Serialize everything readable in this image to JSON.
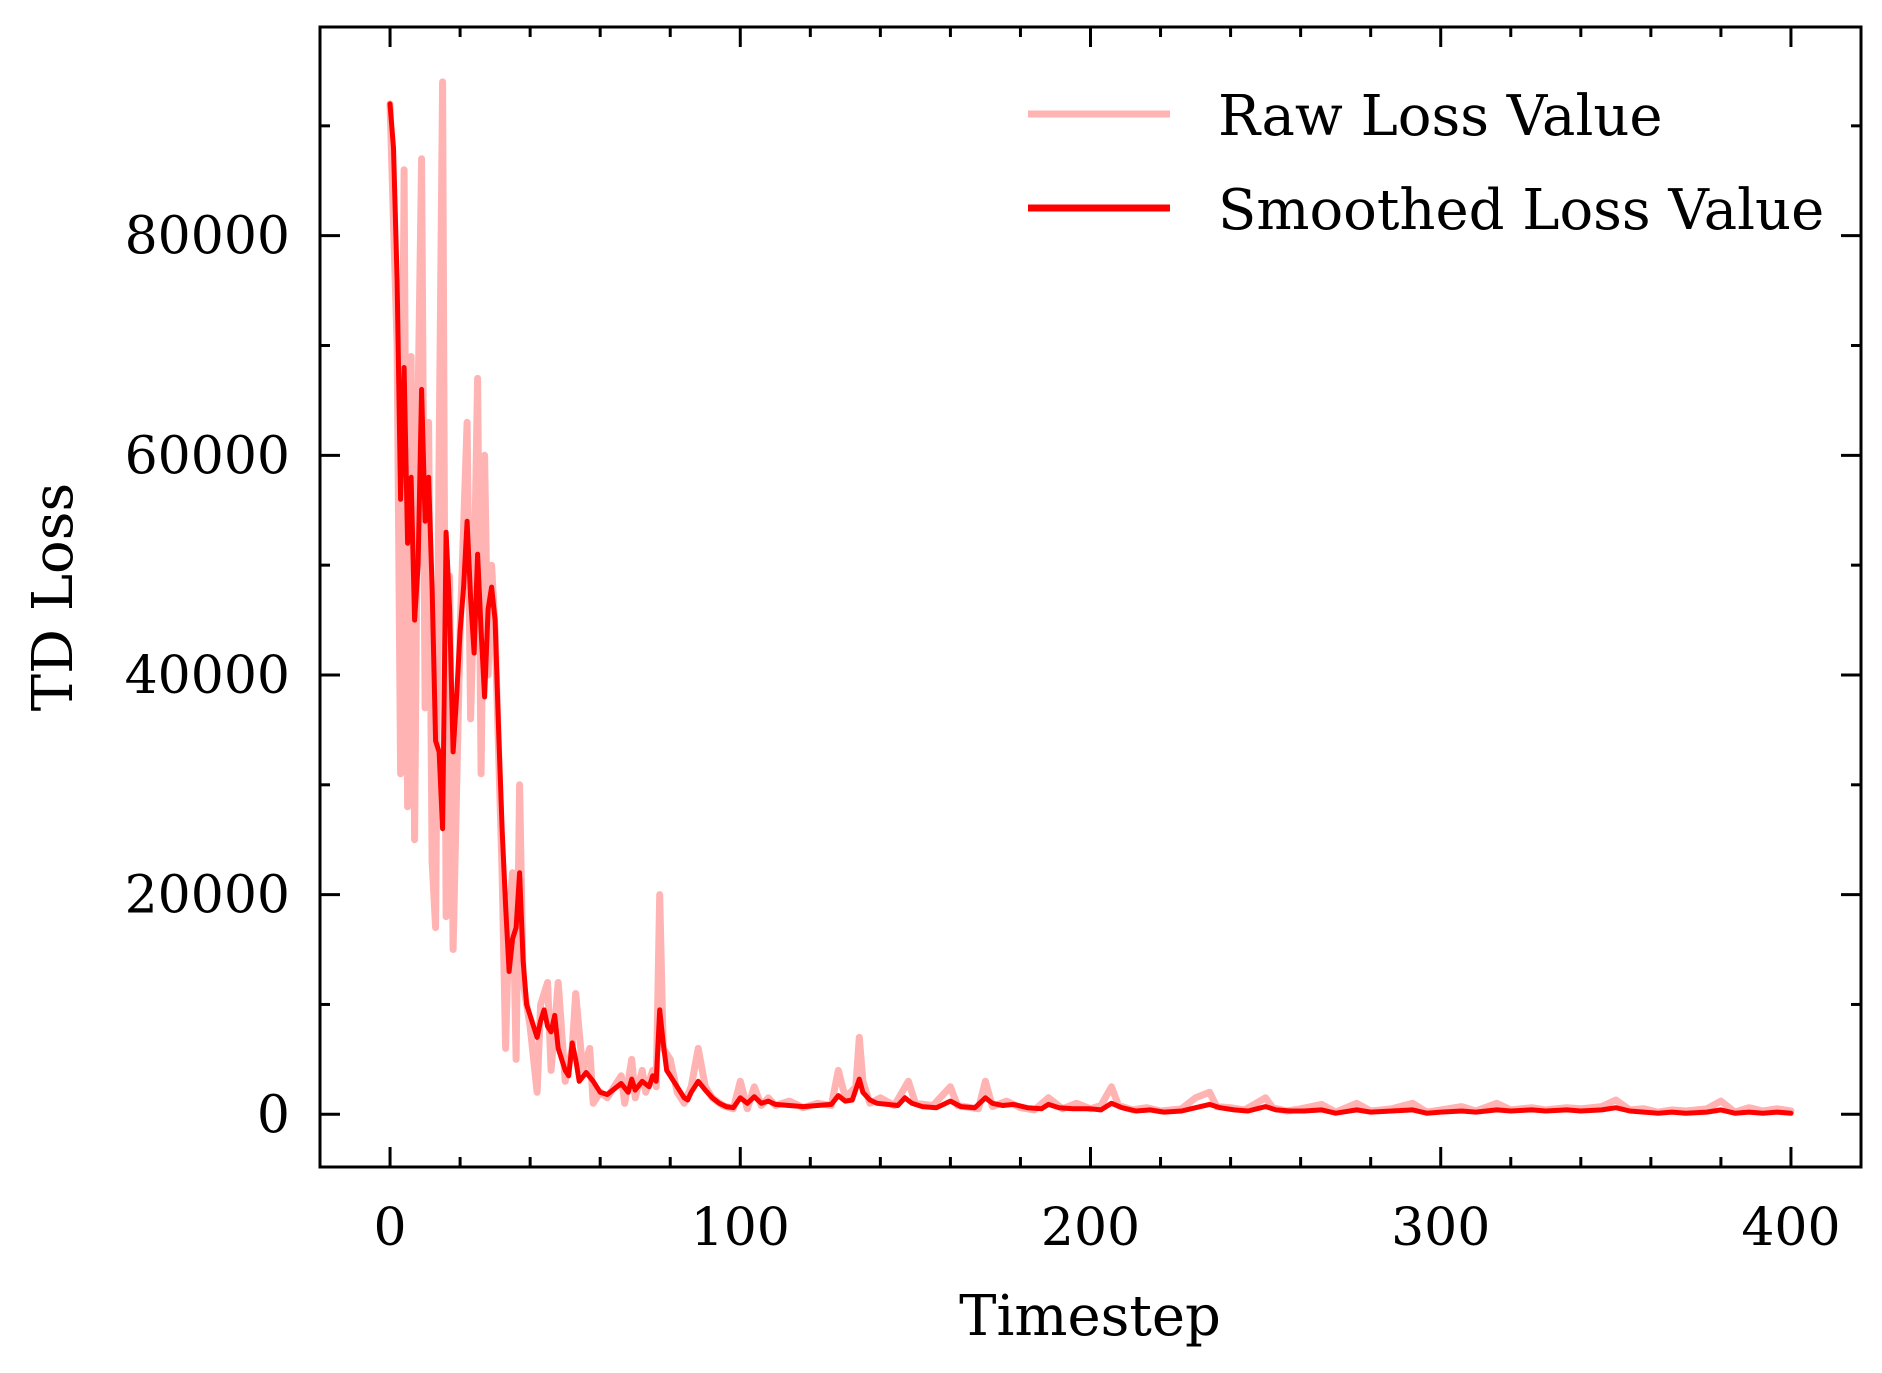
{
  "chart_data": {
    "type": "line",
    "title": "",
    "xlabel": "Timestep",
    "ylabel": "TD Loss",
    "xlim": [
      -20,
      420
    ],
    "ylim": [
      -4800,
      99000
    ],
    "xticks": [
      0,
      100,
      200,
      300,
      400
    ],
    "yticks": [
      0,
      20000,
      40000,
      60000,
      80000
    ],
    "xtick_labels": [
      "0",
      "100",
      "200",
      "300",
      "400"
    ],
    "ytick_labels": [
      "0",
      "20000",
      "40000",
      "60000",
      "80000"
    ],
    "x_minor_step": 20,
    "y_minor_step": 10000,
    "grid": false,
    "legend_position": "top-right",
    "series": [
      {
        "name": "Raw Loss Value",
        "color": "#ffb3b3",
        "points": [
          [
            0,
            92000
          ],
          [
            2,
            70000
          ],
          [
            3,
            31000
          ],
          [
            4,
            86000
          ],
          [
            5,
            28000
          ],
          [
            6,
            69000
          ],
          [
            7,
            25000
          ],
          [
            8,
            65000
          ],
          [
            9,
            87000
          ],
          [
            10,
            37000
          ],
          [
            11,
            63000
          ],
          [
            12,
            23000
          ],
          [
            13,
            17000
          ],
          [
            14,
            60000
          ],
          [
            15,
            94000
          ],
          [
            16,
            18000
          ],
          [
            17,
            49000
          ],
          [
            18,
            15000
          ],
          [
            20,
            44000
          ],
          [
            22,
            63000
          ],
          [
            23,
            36000
          ],
          [
            24,
            48000
          ],
          [
            25,
            67000
          ],
          [
            26,
            31000
          ],
          [
            27,
            60000
          ],
          [
            28,
            40000
          ],
          [
            29,
            50000
          ],
          [
            30,
            44000
          ],
          [
            31,
            33000
          ],
          [
            32,
            22000
          ],
          [
            33,
            6000
          ],
          [
            34,
            18000
          ],
          [
            35,
            22000
          ],
          [
            36,
            5000
          ],
          [
            37,
            30000
          ],
          [
            38,
            12000
          ],
          [
            40,
            8000
          ],
          [
            42,
            2000
          ],
          [
            43,
            10000
          ],
          [
            45,
            12000
          ],
          [
            46,
            4000
          ],
          [
            48,
            12000
          ],
          [
            50,
            3000
          ],
          [
            52,
            6000
          ],
          [
            53,
            11000
          ],
          [
            55,
            4000
          ],
          [
            57,
            6000
          ],
          [
            58,
            1000
          ],
          [
            60,
            2000
          ],
          [
            62,
            1500
          ],
          [
            64,
            2500
          ],
          [
            66,
            3500
          ],
          [
            67,
            1000
          ],
          [
            69,
            5000
          ],
          [
            70,
            1500
          ],
          [
            72,
            4000
          ],
          [
            73,
            2000
          ],
          [
            75,
            4000
          ],
          [
            76,
            2500
          ],
          [
            77,
            20000
          ],
          [
            78,
            6000
          ],
          [
            80,
            5000
          ],
          [
            82,
            2000
          ],
          [
            84,
            1000
          ],
          [
            86,
            2500
          ],
          [
            88,
            6000
          ],
          [
            90,
            2500
          ],
          [
            92,
            1500
          ],
          [
            95,
            800
          ],
          [
            98,
            500
          ],
          [
            100,
            3000
          ],
          [
            102,
            500
          ],
          [
            104,
            2500
          ],
          [
            106,
            800
          ],
          [
            108,
            1500
          ],
          [
            110,
            800
          ],
          [
            114,
            1200
          ],
          [
            118,
            600
          ],
          [
            122,
            1000
          ],
          [
            126,
            800
          ],
          [
            128,
            4000
          ],
          [
            130,
            1500
          ],
          [
            133,
            2500
          ],
          [
            134,
            7000
          ],
          [
            135,
            3000
          ],
          [
            137,
            1000
          ],
          [
            140,
            1500
          ],
          [
            144,
            800
          ],
          [
            148,
            3000
          ],
          [
            150,
            1000
          ],
          [
            155,
            800
          ],
          [
            160,
            2500
          ],
          [
            162,
            800
          ],
          [
            168,
            500
          ],
          [
            170,
            3000
          ],
          [
            172,
            700
          ],
          [
            176,
            1200
          ],
          [
            180,
            600
          ],
          [
            184,
            400
          ],
          [
            188,
            1500
          ],
          [
            192,
            500
          ],
          [
            196,
            1000
          ],
          [
            200,
            500
          ],
          [
            203,
            800
          ],
          [
            206,
            2500
          ],
          [
            208,
            800
          ],
          [
            212,
            400
          ],
          [
            216,
            600
          ],
          [
            220,
            300
          ],
          [
            226,
            500
          ],
          [
            230,
            1500
          ],
          [
            234,
            2000
          ],
          [
            236,
            700
          ],
          [
            240,
            600
          ],
          [
            244,
            400
          ],
          [
            250,
            1500
          ],
          [
            252,
            600
          ],
          [
            256,
            300
          ],
          [
            260,
            500
          ],
          [
            266,
            900
          ],
          [
            270,
            200
          ],
          [
            276,
            1000
          ],
          [
            280,
            300
          ],
          [
            286,
            500
          ],
          [
            292,
            1000
          ],
          [
            296,
            200
          ],
          [
            300,
            400
          ],
          [
            306,
            700
          ],
          [
            310,
            300
          ],
          [
            316,
            1000
          ],
          [
            320,
            400
          ],
          [
            326,
            600
          ],
          [
            330,
            400
          ],
          [
            336,
            600
          ],
          [
            340,
            500
          ],
          [
            346,
            700
          ],
          [
            350,
            1300
          ],
          [
            354,
            400
          ],
          [
            358,
            500
          ],
          [
            362,
            200
          ],
          [
            366,
            400
          ],
          [
            370,
            300
          ],
          [
            376,
            500
          ],
          [
            380,
            1200
          ],
          [
            384,
            200
          ],
          [
            388,
            600
          ],
          [
            392,
            300
          ],
          [
            396,
            500
          ],
          [
            400,
            300
          ]
        ]
      },
      {
        "name": "Smoothed Loss Value",
        "color": "#ff0000",
        "points": [
          [
            0,
            92000
          ],
          [
            1,
            88000
          ],
          [
            2,
            76000
          ],
          [
            3,
            56000
          ],
          [
            4,
            68000
          ],
          [
            5,
            52000
          ],
          [
            6,
            58000
          ],
          [
            7,
            45000
          ],
          [
            8,
            50000
          ],
          [
            9,
            66000
          ],
          [
            10,
            54000
          ],
          [
            11,
            58000
          ],
          [
            12,
            48000
          ],
          [
            13,
            34000
          ],
          [
            14,
            33000
          ],
          [
            15,
            26000
          ],
          [
            16,
            53000
          ],
          [
            17,
            46000
          ],
          [
            18,
            33000
          ],
          [
            19,
            38000
          ],
          [
            20,
            44000
          ],
          [
            21,
            48000
          ],
          [
            22,
            54000
          ],
          [
            23,
            47000
          ],
          [
            24,
            42000
          ],
          [
            25,
            51000
          ],
          [
            26,
            44000
          ],
          [
            27,
            38000
          ],
          [
            28,
            46000
          ],
          [
            29,
            48000
          ],
          [
            30,
            45000
          ],
          [
            31,
            35000
          ],
          [
            32,
            26000
          ],
          [
            33,
            19000
          ],
          [
            34,
            13000
          ],
          [
            35,
            16000
          ],
          [
            36,
            17000
          ],
          [
            37,
            22000
          ],
          [
            38,
            14000
          ],
          [
            39,
            10000
          ],
          [
            40,
            9000
          ],
          [
            41,
            8000
          ],
          [
            42,
            7000
          ],
          [
            43,
            8500
          ],
          [
            44,
            9500
          ],
          [
            45,
            8000
          ],
          [
            46,
            7500
          ],
          [
            47,
            9000
          ],
          [
            48,
            6000
          ],
          [
            50,
            4000
          ],
          [
            51,
            3500
          ],
          [
            52,
            6500
          ],
          [
            53,
            5000
          ],
          [
            54,
            3000
          ],
          [
            56,
            3800
          ],
          [
            58,
            3000
          ],
          [
            60,
            2000
          ],
          [
            62,
            1800
          ],
          [
            64,
            2300
          ],
          [
            66,
            2800
          ],
          [
            68,
            2000
          ],
          [
            69,
            3200
          ],
          [
            70,
            2200
          ],
          [
            72,
            3000
          ],
          [
            74,
            2500
          ],
          [
            75,
            3500
          ],
          [
            76,
            3000
          ],
          [
            77,
            9500
          ],
          [
            78,
            6500
          ],
          [
            79,
            4000
          ],
          [
            80,
            3500
          ],
          [
            82,
            2500
          ],
          [
            84,
            1500
          ],
          [
            85,
            1300
          ],
          [
            86,
            2000
          ],
          [
            88,
            3000
          ],
          [
            90,
            2200
          ],
          [
            92,
            1500
          ],
          [
            94,
            1000
          ],
          [
            96,
            700
          ],
          [
            98,
            600
          ],
          [
            100,
            1500
          ],
          [
            102,
            1000
          ],
          [
            104,
            1600
          ],
          [
            106,
            1000
          ],
          [
            108,
            1200
          ],
          [
            110,
            900
          ],
          [
            114,
            800
          ],
          [
            118,
            700
          ],
          [
            122,
            800
          ],
          [
            126,
            900
          ],
          [
            128,
            1700
          ],
          [
            130,
            1200
          ],
          [
            132,
            1300
          ],
          [
            134,
            3200
          ],
          [
            135,
            2000
          ],
          [
            137,
            1300
          ],
          [
            139,
            1000
          ],
          [
            142,
            900
          ],
          [
            145,
            800
          ],
          [
            147,
            1500
          ],
          [
            149,
            1000
          ],
          [
            152,
            700
          ],
          [
            156,
            600
          ],
          [
            160,
            1200
          ],
          [
            163,
            700
          ],
          [
            167,
            600
          ],
          [
            170,
            1500
          ],
          [
            172,
            1000
          ],
          [
            175,
            800
          ],
          [
            178,
            900
          ],
          [
            182,
            600
          ],
          [
            186,
            500
          ],
          [
            188,
            900
          ],
          [
            191,
            600
          ],
          [
            195,
            500
          ],
          [
            200,
            500
          ],
          [
            203,
            400
          ],
          [
            206,
            1000
          ],
          [
            209,
            600
          ],
          [
            213,
            300
          ],
          [
            217,
            400
          ],
          [
            221,
            200
          ],
          [
            226,
            300
          ],
          [
            230,
            600
          ],
          [
            234,
            900
          ],
          [
            237,
            600
          ],
          [
            241,
            400
          ],
          [
            245,
            300
          ],
          [
            250,
            700
          ],
          [
            253,
            400
          ],
          [
            257,
            300
          ],
          [
            261,
            300
          ],
          [
            266,
            400
          ],
          [
            270,
            100
          ],
          [
            276,
            400
          ],
          [
            280,
            200
          ],
          [
            286,
            300
          ],
          [
            292,
            400
          ],
          [
            296,
            100
          ],
          [
            300,
            200
          ],
          [
            306,
            300
          ],
          [
            310,
            200
          ],
          [
            316,
            400
          ],
          [
            320,
            300
          ],
          [
            326,
            400
          ],
          [
            330,
            300
          ],
          [
            336,
            400
          ],
          [
            340,
            300
          ],
          [
            346,
            400
          ],
          [
            350,
            600
          ],
          [
            354,
            300
          ],
          [
            358,
            200
          ],
          [
            362,
            100
          ],
          [
            366,
            200
          ],
          [
            370,
            100
          ],
          [
            376,
            200
          ],
          [
            380,
            400
          ],
          [
            384,
            100
          ],
          [
            388,
            200
          ],
          [
            392,
            100
          ],
          [
            396,
            200
          ],
          [
            400,
            100
          ]
        ]
      }
    ]
  }
}
